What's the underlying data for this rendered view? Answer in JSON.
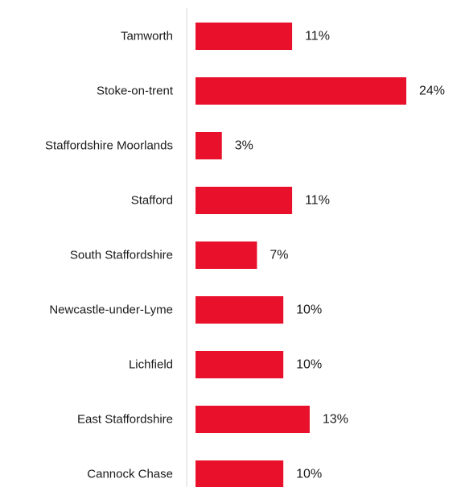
{
  "chart_data": {
    "type": "bar",
    "orientation": "horizontal",
    "categories": [
      "Tamworth",
      "Stoke-on-trent",
      "Staffordshire Moorlands",
      "Stafford",
      "South Staffordshire",
      "Newcastle-under-Lyme",
      "Lichfield",
      "East Staffordshire",
      "Cannock Chase"
    ],
    "values": [
      11,
      24,
      3,
      11,
      7,
      10,
      10,
      13,
      10
    ],
    "value_labels": [
      "11%",
      "24%",
      "3%",
      "11%",
      "7%",
      "10%",
      "10%",
      "13%",
      "10%"
    ],
    "unit": "%",
    "xlim": [
      0,
      24
    ],
    "grid": false,
    "legend": "none",
    "bar_color": "#e8102a",
    "axis_color": "#d9d9d9"
  }
}
